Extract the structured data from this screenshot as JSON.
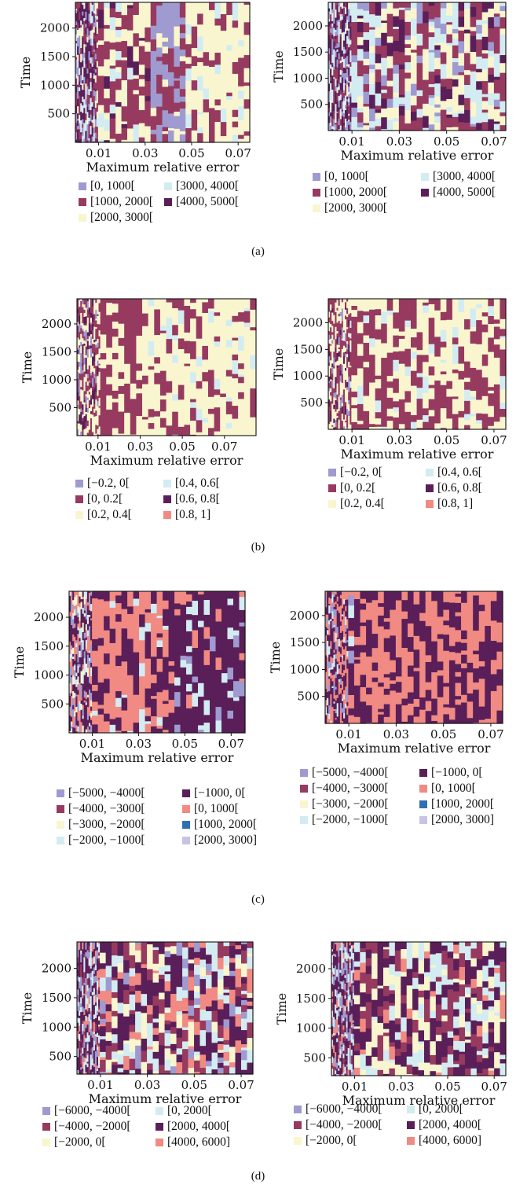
{
  "colors": {
    "lavender": "#9f9ad0",
    "maroon": "#973a60",
    "cream": "#f9f6cf",
    "lightblue": "#d3ecf2",
    "purple": "#5a1f58",
    "salmon": "#f08a82",
    "blue": "#2f6fb3",
    "lilac": "#c8c3e3",
    "axis": "#111111"
  },
  "panels": [
    {
      "label": "(a)",
      "plots": [
        {
          "chart_data": {
            "type": "heatmap",
            "xlabel": "Maximum relative error",
            "ylabel": "Time",
            "xticks": [
              "0.01",
              "0.03",
              "0.05",
              "0.07"
            ],
            "xtick_values": [
              0.01,
              0.03,
              0.05,
              0.07
            ],
            "yticks": [
              "500",
              "1000",
              "1500",
              "2000"
            ],
            "ytick_values": [
              500,
              1000,
              1500,
              2000
            ],
            "xlim": [
              0.0,
              0.075
            ],
            "ylim": [
              0,
              2450
            ],
            "legend_entries": [
              "[0, 1000[",
              "[1000, 2000[",
              "[2000, 3000[",
              "[3000, 4000[",
              "[4000, 5000["
            ],
            "legend_colors": [
              "lavender",
              "maroon",
              "cream",
              "lightblue",
              "purple"
            ],
            "dominant_bins": [
              {
                "x_from": 0.0,
                "x_to": 0.01,
                "value": "mixed"
              },
              {
                "x_from": 0.01,
                "x_to": 0.03,
                "value": "[1000, 2000["
              },
              {
                "x_from": 0.04,
                "x_to": 0.05,
                "value": "[0, 1000["
              },
              {
                "x_from": 0.05,
                "x_to": 0.075,
                "value": "[2000, 3000["
              }
            ]
          }
        },
        {
          "chart_data": {
            "type": "heatmap",
            "xlabel": "Maximum relative error",
            "ylabel": "Time",
            "xticks": [
              "0.01",
              "0.03",
              "0.05",
              "0.07"
            ],
            "xtick_values": [
              0.01,
              0.03,
              0.05,
              0.07
            ],
            "yticks": [
              "500",
              "1000",
              "1500",
              "2000"
            ],
            "ytick_values": [
              500,
              1000,
              1500,
              2000
            ],
            "xlim": [
              0.0,
              0.075
            ],
            "ylim": [
              0,
              2450
            ],
            "legend_entries": [
              "[0, 1000[",
              "[1000, 2000[",
              "[2000, 3000[",
              "[3000, 4000[",
              "[4000, 5000["
            ],
            "legend_colors": [
              "lavender",
              "maroon",
              "cream",
              "lightblue",
              "purple"
            ]
          }
        }
      ]
    },
    {
      "label": "(b)",
      "plots": [
        {
          "chart_data": {
            "type": "heatmap",
            "xlabel": "Maximum relative error",
            "ylabel": "Time",
            "xticks": [
              "0.01",
              "0.03",
              "0.05",
              "0.07"
            ],
            "xtick_values": [
              0.01,
              0.03,
              0.05,
              0.07
            ],
            "yticks": [
              "500",
              "1000",
              "1500",
              "2000"
            ],
            "ytick_values": [
              500,
              1000,
              1500,
              2000
            ],
            "xlim": [
              0.0,
              0.085
            ],
            "ylim": [
              0,
              2450
            ],
            "legend_entries": [
              "[−0.2, 0[",
              "[0, 0.2[",
              "[0.2, 0.4[",
              "[0.4, 0.6[",
              "[0.6, 0.8[",
              "[0.8, 1]"
            ],
            "legend_colors": [
              "lavender",
              "maroon",
              "cream",
              "lightblue",
              "purple",
              "salmon"
            ]
          }
        },
        {
          "chart_data": {
            "type": "heatmap",
            "xlabel": "Maximum relative error",
            "ylabel": "Time",
            "xticks": [
              "0.01",
              "0.03",
              "0.05",
              "0.07"
            ],
            "xtick_values": [
              0.01,
              0.03,
              0.05,
              0.07
            ],
            "yticks": [
              "500",
              "1000",
              "1500",
              "2000"
            ],
            "ytick_values": [
              500,
              1000,
              1500,
              2000
            ],
            "xlim": [
              0.0,
              0.075
            ],
            "ylim": [
              0,
              2450
            ],
            "legend_entries": [
              "[−0.2, 0[",
              "[0, 0.2[",
              "[0.2, 0.4[",
              "[0.4, 0.6[",
              "[0.6, 0.8[",
              "[0.8, 1]"
            ],
            "legend_colors": [
              "lavender",
              "maroon",
              "cream",
              "lightblue",
              "purple",
              "salmon"
            ]
          }
        }
      ]
    },
    {
      "label": "(c)",
      "plots": [
        {
          "chart_data": {
            "type": "heatmap",
            "xlabel": "Maximum relative error",
            "ylabel": "Time",
            "xticks": [
              "0.01",
              "0.03",
              "0.05",
              "0.07"
            ],
            "xtick_values": [
              0.01,
              0.03,
              0.05,
              0.07
            ],
            "yticks": [
              "500",
              "1000",
              "1500",
              "2000"
            ],
            "ytick_values": [
              500,
              1000,
              1500,
              2000
            ],
            "xlim": [
              0.0,
              0.076
            ],
            "ylim": [
              0,
              2450
            ],
            "legend_entries": [
              "[−5000, −4000[",
              "[−4000, −3000[",
              "[−3000, −2000[",
              "[−2000, −1000[",
              "[−1000, 0[",
              "[0, 1000[",
              "[1000, 2000[",
              "[2000, 3000]"
            ],
            "legend_colors": [
              "lavender",
              "maroon",
              "cream",
              "lightblue",
              "purple",
              "salmon",
              "blue",
              "lilac"
            ]
          }
        },
        {
          "chart_data": {
            "type": "heatmap",
            "xlabel": "Maximum relative error",
            "ylabel": "Time",
            "xticks": [
              "0.01",
              "0.03",
              "0.05",
              "0.07"
            ],
            "xtick_values": [
              0.01,
              0.03,
              0.05,
              0.07
            ],
            "yticks": [
              "500",
              "1000",
              "1500",
              "2000"
            ],
            "ytick_values": [
              500,
              1000,
              1500,
              2000
            ],
            "xlim": [
              0.0,
              0.075
            ],
            "ylim": [
              0,
              2450
            ],
            "legend_entries": [
              "[−5000, −4000[",
              "[−4000, −3000[",
              "[−3000, −2000[",
              "[−2000, −1000[",
              "[−1000, 0[",
              "[0, 1000[",
              "[1000, 2000[",
              "[2000, 3000]"
            ],
            "legend_colors": [
              "lavender",
              "maroon",
              "cream",
              "lightblue",
              "purple",
              "salmon",
              "blue",
              "lilac"
            ]
          }
        }
      ]
    },
    {
      "label": "(d)",
      "plots": [
        {
          "chart_data": {
            "type": "heatmap",
            "xlabel": "Maximum relative error",
            "ylabel": "Time",
            "xticks": [
              "0.01",
              "0.03",
              "0.05",
              "0.07"
            ],
            "xtick_values": [
              0.01,
              0.03,
              0.05,
              0.07
            ],
            "yticks": [
              "500",
              "1000",
              "1500",
              "2000"
            ],
            "ytick_values": [
              500,
              1000,
              1500,
              2000
            ],
            "xlim": [
              0.0,
              0.075
            ],
            "ylim": [
              200,
              2450
            ],
            "legend_entries": [
              "[−6000, −4000[",
              "[−4000, −2000[",
              "[−2000, 0[",
              "[0, 2000[",
              "[2000, 4000[",
              "[4000, 6000]"
            ],
            "legend_colors": [
              "lavender",
              "maroon",
              "cream",
              "lightblue",
              "purple",
              "salmon"
            ]
          }
        },
        {
          "chart_data": {
            "type": "heatmap",
            "xlabel": "Maximum relative error",
            "ylabel": "Time",
            "xticks": [
              "0.01",
              "0.03",
              "0.05",
              "0.07"
            ],
            "xtick_values": [
              0.01,
              0.03,
              0.05,
              0.07
            ],
            "yticks": [
              "500",
              "1000",
              "1500",
              "2000"
            ],
            "ytick_values": [
              500,
              1000,
              1500,
              2000
            ],
            "xlim": [
              0.0,
              0.075
            ],
            "ylim": [
              200,
              2450
            ],
            "legend_entries": [
              "[−6000, −4000[",
              "[−4000, −2000[",
              "[−2000, 0[",
              "[0, 2000[",
              "[2000, 4000[",
              "[4000, 6000]"
            ],
            "legend_colors": [
              "lavender",
              "maroon",
              "cream",
              "lightblue",
              "purple",
              "salmon"
            ]
          }
        }
      ]
    }
  ]
}
